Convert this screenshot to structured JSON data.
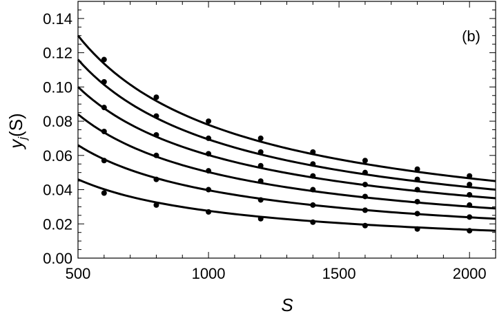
{
  "chart_data": {
    "type": "scatter",
    "xlabel": "S",
    "ylabel_main": "y",
    "ylabel_sub": "j",
    "ylabel_arg": "(S)",
    "panel_label": "(b)",
    "xlim": [
      500,
      2100
    ],
    "ylim": [
      0,
      0.15
    ],
    "xticks": [
      500,
      1000,
      1500,
      2000
    ],
    "xtick_labels": [
      "500",
      "1000",
      "1500",
      "2000"
    ],
    "yticks": [
      0,
      0.02,
      0.04,
      0.06,
      0.08,
      0.1,
      0.12,
      0.14
    ],
    "ytick_labels": [
      "0.00",
      "0.02",
      "0.04",
      "0.06",
      "0.08",
      "0.10",
      "0.12",
      "0.14"
    ],
    "x": [
      600,
      800,
      1000,
      1200,
      1400,
      1600,
      1800,
      2000
    ],
    "series": [
      {
        "points": [
          0.116,
          0.094,
          0.08,
          0.07,
          0.062,
          0.057,
          0.052,
          0.048
        ],
        "fit_at_500": 0.13,
        "fit_at_2100": 0.045
      },
      {
        "points": [
          0.103,
          0.083,
          0.07,
          0.062,
          0.055,
          0.05,
          0.046,
          0.043
        ],
        "fit_at_500": 0.116,
        "fit_at_2100": 0.04
      },
      {
        "points": [
          0.088,
          0.072,
          0.061,
          0.054,
          0.048,
          0.043,
          0.04,
          0.037
        ],
        "fit_at_500": 0.1,
        "fit_at_2100": 0.035
      },
      {
        "points": [
          0.074,
          0.06,
          0.051,
          0.045,
          0.04,
          0.036,
          0.033,
          0.031
        ],
        "fit_at_500": 0.084,
        "fit_at_2100": 0.029
      },
      {
        "points": [
          0.057,
          0.046,
          0.04,
          0.034,
          0.031,
          0.028,
          0.026,
          0.024
        ],
        "fit_at_500": 0.066,
        "fit_at_2100": 0.023
      },
      {
        "points": [
          0.038,
          0.031,
          0.027,
          0.023,
          0.021,
          0.019,
          0.017,
          0.016
        ],
        "fit_at_500": 0.046,
        "fit_at_2100": 0.016
      }
    ],
    "grid": false,
    "colors": {
      "line": "#000000",
      "marker": "#000000",
      "axis": "#000000"
    }
  }
}
